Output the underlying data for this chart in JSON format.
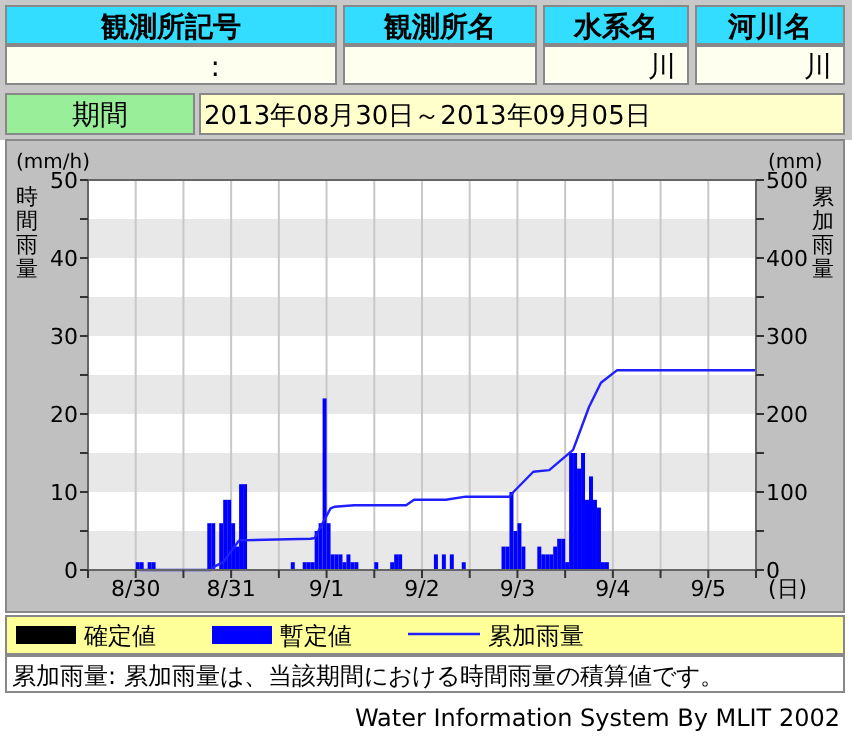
{
  "chart_data": {
    "type": "bar",
    "annotations": [
      "観測所記号",
      "観測所名",
      "水系名",
      "河川名",
      ":",
      "川",
      "川",
      "期間",
      "2013年08月30日～2013年09月05日",
      "累加雨量: 累加雨量は、当該期間における時間雨量の積算値です。",
      "Water Information System By MLIT 2002",
      "(mm/h)",
      "(mm)"
    ],
    "xlabel": "(日)",
    "ylabel": "時間雨量",
    "y2label": "累加雨量",
    "xlim": [
      "2013-08-30T00:00",
      "2013-09-06T00:00"
    ],
    "xticks": [
      {
        "value": "2013-08-30T00:00",
        "label": null
      },
      {
        "value": "2013-08-30T12:00",
        "label": "8/30"
      },
      {
        "value": "2013-08-31T00:00",
        "label": null
      },
      {
        "value": "2013-08-31T12:00",
        "label": "8/31"
      },
      {
        "value": "2013-09-01T00:00",
        "label": null
      },
      {
        "value": "2013-09-01T12:00",
        "label": "9/1"
      },
      {
        "value": "2013-09-02T00:00",
        "label": null
      },
      {
        "value": "2013-09-02T12:00",
        "label": "9/2"
      },
      {
        "value": "2013-09-03T00:00",
        "label": null
      },
      {
        "value": "2013-09-03T12:00",
        "label": "9/3"
      },
      {
        "value": "2013-09-04T00:00",
        "label": null
      },
      {
        "value": "2013-09-04T12:00",
        "label": "9/4"
      },
      {
        "value": "2013-09-05T00:00",
        "label": null
      },
      {
        "value": "2013-09-05T12:00",
        "label": "9/5"
      },
      {
        "value": "2013-09-06T00:00",
        "label": null
      }
    ],
    "ylim": [
      0,
      50
    ],
    "yticks": [
      0,
      {
        "value": 5,
        "label": null
      },
      10,
      {
        "value": 15,
        "label": null
      },
      20,
      {
        "value": 25,
        "label": null
      },
      30,
      {
        "value": 35,
        "label": null
      },
      40,
      {
        "value": 45,
        "label": null
      },
      50
    ],
    "y2lim": [
      0,
      500
    ],
    "y2ticks": [
      0,
      {
        "value": 50,
        "label": null
      },
      100,
      {
        "value": 150,
        "label": null
      },
      200,
      {
        "value": 250,
        "label": null
      },
      300,
      {
        "value": 350,
        "label": null
      },
      400,
      {
        "value": 450,
        "label": null
      },
      500
    ],
    "grid": "x",
    "bands": [
      {
        "axis": "y",
        "from": 0,
        "to": 5,
        "color": "#e8e8e8"
      },
      {
        "axis": "y",
        "from": 10,
        "to": 15,
        "color": "#e8e8e8"
      },
      {
        "axis": "y",
        "from": 20,
        "to": 25,
        "color": "#e8e8e8"
      },
      {
        "axis": "y",
        "from": 30,
        "to": 35,
        "color": "#e8e8e8"
      },
      {
        "axis": "y",
        "from": 40,
        "to": 45,
        "color": "#e8e8e8"
      }
    ],
    "legend": "bottom",
    "series": [
      {
        "name": "確定値",
        "color": "#000000"
      },
      {
        "name": "暫定値",
        "color": "#0000ff",
        "x": [
          "2013-08-30T12:00",
          "2013-08-30T13:00",
          "2013-08-30T15:00",
          "2013-08-30T16:00",
          "2013-08-31T06:00",
          "2013-08-31T07:00",
          "2013-08-31T09:00",
          "2013-08-31T10:00",
          "2013-08-31T11:00",
          "2013-08-31T12:00",
          "2013-08-31T13:00",
          "2013-08-31T14:00",
          "2013-08-31T15:00",
          "2013-09-01T03:00",
          "2013-09-01T06:00",
          "2013-09-01T07:00",
          "2013-09-01T08:00",
          "2013-09-01T09:00",
          "2013-09-01T10:00",
          "2013-09-01T11:00",
          "2013-09-01T12:00",
          "2013-09-01T13:00",
          "2013-09-01T14:00",
          "2013-09-01T15:00",
          "2013-09-01T16:00",
          "2013-09-01T17:00",
          "2013-09-01T18:00",
          "2013-09-01T19:00",
          "2013-09-02T00:00",
          "2013-09-02T04:00",
          "2013-09-02T05:00",
          "2013-09-02T06:00",
          "2013-09-02T15:00",
          "2013-09-02T17:00",
          "2013-09-02T19:00",
          "2013-09-02T22:00",
          "2013-09-03T08:00",
          "2013-09-03T09:00",
          "2013-09-03T10:00",
          "2013-09-03T11:00",
          "2013-09-03T12:00",
          "2013-09-03T13:00",
          "2013-09-03T17:00",
          "2013-09-03T18:00",
          "2013-09-03T19:00",
          "2013-09-03T20:00",
          "2013-09-03T21:00",
          "2013-09-03T22:00",
          "2013-09-03T23:00",
          "2013-09-04T00:00",
          "2013-09-04T01:00",
          "2013-09-04T02:00",
          "2013-09-04T03:00",
          "2013-09-04T04:00",
          "2013-09-04T05:00",
          "2013-09-04T06:00",
          "2013-09-04T07:00",
          "2013-09-04T08:00",
          "2013-09-04T09:00",
          "2013-09-04T10:00"
        ],
        "values": [
          1,
          1,
          1,
          1,
          6,
          6,
          6,
          9,
          9,
          6,
          3,
          11,
          11,
          1,
          1,
          1,
          1,
          5,
          6,
          22,
          6,
          2,
          2,
          2,
          1,
          2,
          1,
          1,
          1,
          1,
          2,
          2,
          2,
          2,
          2,
          1,
          3,
          3,
          10,
          5,
          6,
          3,
          3,
          2,
          2,
          2,
          3,
          4,
          4,
          1,
          15,
          15,
          13,
          15,
          9,
          12,
          9,
          8,
          1,
          1
        ]
      },
      {
        "name": "累加雨量",
        "type": "line",
        "axis": "y2",
        "color": "#2020ff",
        "x": [
          "2013-08-30T13:00",
          "2013-08-31T07:00",
          "2013-08-31T08:00",
          "2013-08-31T10:00",
          "2013-08-31T14:00",
          "2013-09-01T08:00",
          "2013-09-01T09:00",
          "2013-09-01T13:00",
          "2013-09-01T14:00",
          "2013-09-01T19:00",
          "2013-09-02T08:00",
          "2013-09-02T10:00",
          "2013-09-02T18:00",
          "2013-09-02T23:00",
          "2013-09-03T10:00",
          "2013-09-03T11:00",
          "2013-09-03T16:00",
          "2013-09-03T20:00",
          "2013-09-04T02:00",
          "2013-09-04T06:00",
          "2013-09-04T09:00",
          "2013-09-04T13:00",
          "2013-09-06T00:00"
        ],
        "values": [
          0,
          0,
          5,
          10,
          38,
          40,
          41,
          79,
          81,
          83,
          83,
          90,
          90,
          94,
          94,
          100,
          126,
          128,
          154,
          209,
          240,
          256,
          256
        ]
      }
    ]
  }
}
